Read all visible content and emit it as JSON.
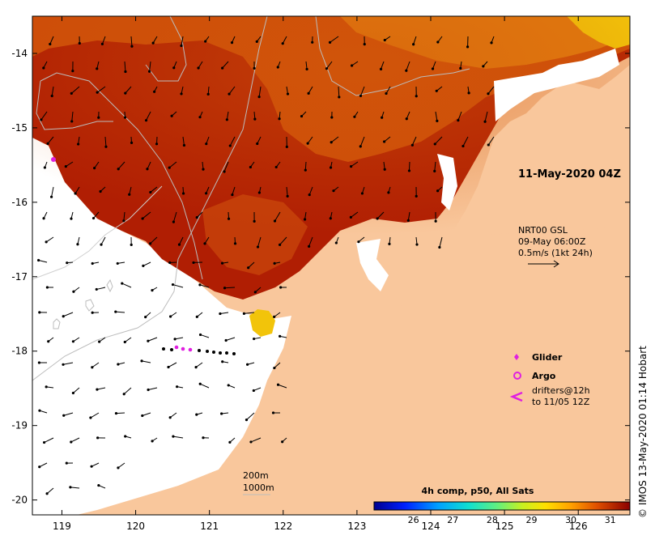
{
  "map": {
    "date_label": "11-May-2020 04Z",
    "credit": "© IMOS 13-May-2020 01:14 Hobart",
    "x_ticks": [
      {
        "value": 119,
        "label": "119"
      },
      {
        "value": 120,
        "label": "120"
      },
      {
        "value": 121,
        "label": "121"
      },
      {
        "value": 122,
        "label": "122"
      },
      {
        "value": 123,
        "label": "123"
      },
      {
        "value": 124,
        "label": "124"
      },
      {
        "value": 125,
        "label": "125"
      },
      {
        "value": 126,
        "label": "126"
      }
    ],
    "y_ticks": [
      {
        "value": -14,
        "label": "-14"
      },
      {
        "value": -15,
        "label": "-15"
      },
      {
        "value": -16,
        "label": "-16"
      },
      {
        "value": -17,
        "label": "-17"
      },
      {
        "value": -18,
        "label": "-18"
      },
      {
        "value": -19,
        "label": "-19"
      },
      {
        "value": -20,
        "label": "-20"
      }
    ],
    "lon_range": [
      118.6,
      126.7
    ],
    "lat_range": [
      -20.2,
      -13.5
    ]
  },
  "currents": {
    "line1": "NRT00 GSL",
    "line2": "09-May 06:00Z",
    "line3": "0.5m/s (1kt 24h)"
  },
  "legend": {
    "glider": "Glider",
    "argo": "Argo",
    "drifters_line1": "drifters@12h",
    "drifters_line2": "to 11/05 12Z"
  },
  "depth": {
    "c200": "200m",
    "c1000": "1000m"
  },
  "colorbar": {
    "title": "4h comp, p50, All Sats",
    "range": [
      25,
      31.5
    ],
    "ticks": [
      {
        "value": 26,
        "label": "26"
      },
      {
        "value": 27,
        "label": "27"
      },
      {
        "value": 28,
        "label": "28"
      },
      {
        "value": 29,
        "label": "29"
      },
      {
        "value": 30,
        "label": "30"
      },
      {
        "value": 31,
        "label": "31"
      }
    ]
  },
  "colors": {
    "land": "#f9c79c",
    "sst_hot": "#a50e02",
    "sst_mid": "#c93d0a",
    "sst_warm": "#e27a10",
    "sst_yellow": "#f5cc05",
    "glider": "#e020e0",
    "drifter": "#000000"
  }
}
